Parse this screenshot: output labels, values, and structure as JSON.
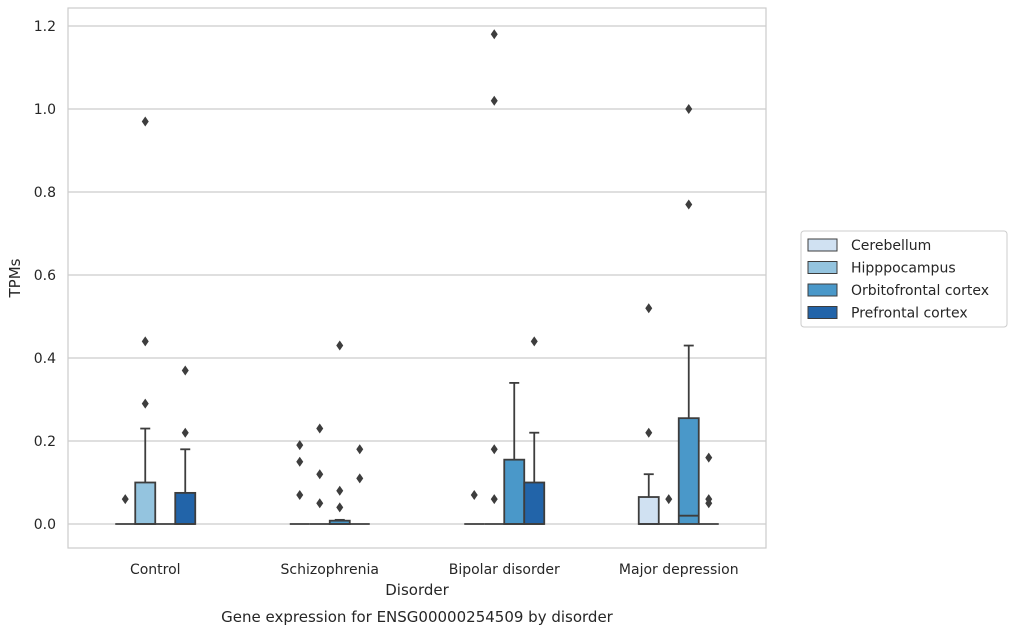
{
  "chart_data": {
    "type": "box",
    "caption": "Gene expression for ENSG00000254509 by disorder",
    "xlabel": "Disorder",
    "ylabel": "TPMs",
    "ylim": [
      -0.055,
      1.24
    ],
    "yticks": [
      0.0,
      0.2,
      0.4,
      0.6,
      0.8,
      1.0,
      1.2
    ],
    "ytick_labels": [
      "0.0",
      "0.2",
      "0.4",
      "0.6",
      "0.8",
      "1.0",
      "1.2"
    ],
    "grid": true,
    "legend_position": "right",
    "categories": [
      "Control",
      "Schizophrenia",
      "Bipolar disorder",
      "Major depression"
    ],
    "series": [
      {
        "name": "Cerebellum",
        "color": "#d0e1f2",
        "boxes": [
          {
            "q1": 0,
            "median": 0,
            "q3": 0,
            "whisker_low": 0,
            "whisker_high": 0,
            "outliers": [
              0.06
            ]
          },
          {
            "q1": 0,
            "median": 0,
            "q3": 0,
            "whisker_low": 0,
            "whisker_high": 0,
            "outliers": [
              0.07,
              0.15,
              0.19
            ]
          },
          {
            "q1": 0,
            "median": 0,
            "q3": 0,
            "whisker_low": 0,
            "whisker_high": 0,
            "outliers": [
              0.07
            ]
          },
          {
            "q1": 0,
            "median": 0,
            "q3": 0.065,
            "whisker_low": 0,
            "whisker_high": 0.12,
            "outliers": [
              0.22,
              0.52
            ]
          }
        ]
      },
      {
        "name": "Hipppocampus",
        "color": "#94c4df",
        "boxes": [
          {
            "q1": 0,
            "median": 0,
            "q3": 0.1,
            "whisker_low": 0,
            "whisker_high": 0.23,
            "outliers": [
              0.29,
              0.44,
              0.97
            ]
          },
          {
            "q1": 0,
            "median": 0,
            "q3": 0.0,
            "whisker_low": 0,
            "whisker_high": 0,
            "outliers": [
              0.05,
              0.12,
              0.23
            ]
          },
          {
            "q1": 0,
            "median": 0,
            "q3": 0,
            "whisker_low": 0,
            "whisker_high": 0,
            "outliers": [
              0.06,
              0.18,
              1.02,
              1.18
            ]
          },
          {
            "q1": 0,
            "median": 0,
            "q3": 0,
            "whisker_low": 0,
            "whisker_high": 0,
            "outliers": [
              0.06
            ]
          }
        ]
      },
      {
        "name": "Orbitofrontal cortex",
        "color": "#4a98c9",
        "boxes": [
          {
            "q1": 0,
            "median": 0,
            "q3": 0,
            "whisker_low": 0,
            "whisker_high": 0,
            "outliers": []
          },
          {
            "q1": 0,
            "median": 0,
            "q3": 0.008,
            "whisker_low": 0,
            "whisker_high": 0.01,
            "outliers": [
              0.04,
              0.08,
              0.43
            ]
          },
          {
            "q1": 0,
            "median": 0,
            "q3": 0.155,
            "whisker_low": 0,
            "whisker_high": 0.34,
            "outliers": []
          },
          {
            "q1": 0,
            "median": 0.02,
            "q3": 0.255,
            "whisker_low": 0,
            "whisker_high": 0.43,
            "outliers": [
              0.77,
              1.0
            ]
          }
        ]
      },
      {
        "name": "Prefrontal cortex",
        "color": "#2264a9",
        "boxes": [
          {
            "q1": 0,
            "median": 0,
            "q3": 0.075,
            "whisker_low": 0,
            "whisker_high": 0.18,
            "outliers": [
              0.22,
              0.37
            ]
          },
          {
            "q1": 0,
            "median": 0,
            "q3": 0,
            "whisker_low": 0,
            "whisker_high": 0,
            "outliers": [
              0.11,
              0.18
            ]
          },
          {
            "q1": 0,
            "median": 0,
            "q3": 0.1,
            "whisker_low": 0,
            "whisker_high": 0.22,
            "outliers": [
              0.44
            ]
          },
          {
            "q1": 0,
            "median": 0,
            "q3": 0,
            "whisker_low": 0,
            "whisker_high": 0,
            "outliers": [
              0.05,
              0.06,
              0.16
            ]
          }
        ]
      }
    ]
  }
}
